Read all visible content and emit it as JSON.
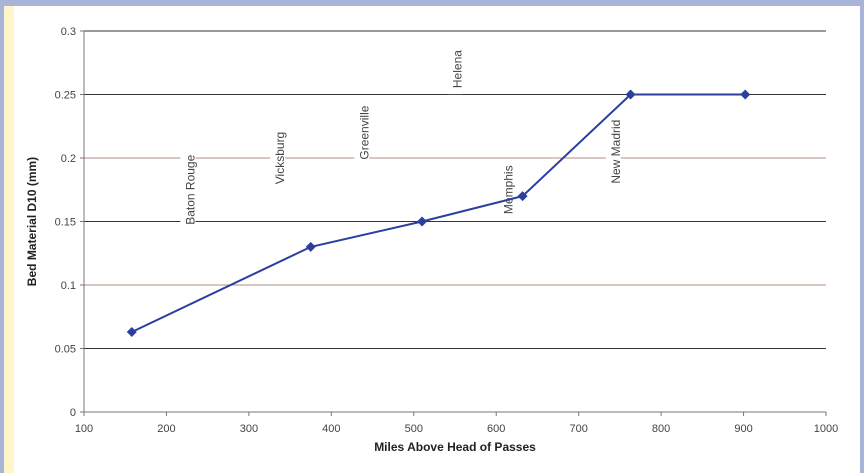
{
  "chart_data": {
    "type": "line",
    "title": "",
    "xlabel": "Miles Above Head of Passes",
    "ylabel": "Bed Material D10 (mm)",
    "xlim": [
      100,
      1000
    ],
    "ylim": [
      0,
      0.3
    ],
    "x_ticks": [
      "100",
      "200",
      "300",
      "400",
      "500",
      "600",
      "700",
      "800",
      "900",
      "1000"
    ],
    "y_ticks": [
      "0",
      "0.05",
      "0.1",
      "0.15",
      "0.2",
      "0.25",
      "0.3"
    ],
    "grid": "horizontal",
    "series": [
      {
        "color": "#2b3f9e",
        "marker": "diamond",
        "x": [
          158,
          375,
          510,
          632,
          763,
          902
        ],
        "y": [
          0.063,
          0.13,
          0.15,
          0.17,
          0.25,
          0.25
        ]
      }
    ],
    "annotations": [
      {
        "text": "Baton Rouge",
        "x": 229,
        "y": 0.175
      },
      {
        "text": "Vicksburg",
        "x": 338,
        "y": 0.2
      },
      {
        "text": "Greenville",
        "x": 440,
        "y": 0.22
      },
      {
        "text": "Helena",
        "x": 553,
        "y": 0.27
      },
      {
        "text": "Memphis",
        "x": 615,
        "y": 0.175
      },
      {
        "text": "New Madrid",
        "x": 745,
        "y": 0.205
      }
    ]
  }
}
